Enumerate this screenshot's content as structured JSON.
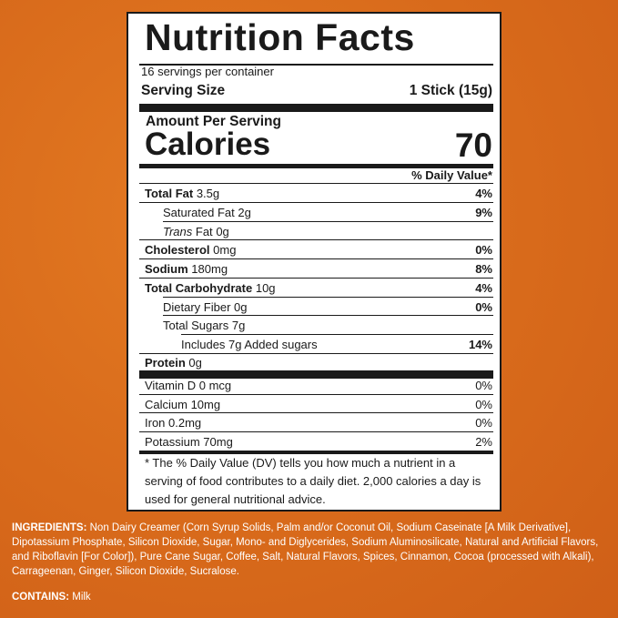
{
  "label": {
    "title": "Nutrition Facts",
    "servings_per_container": "16 servings per container",
    "serving_size_label": "Serving Size",
    "serving_size_value": "1 Stick (15g)",
    "amount_per_serving": "Amount Per Serving",
    "calories_label": "Calories",
    "calories_value": "70",
    "dv_header": "% Daily Value*",
    "rows": [
      {
        "name": "Total Fat",
        "amount": "3.5g",
        "dv": "4%"
      },
      {
        "name": "Saturated Fat",
        "amount": "2g",
        "dv": "9%"
      },
      {
        "name": "Trans",
        "name_suffix": "Fat",
        "amount": "0g",
        "dv": ""
      },
      {
        "name": "Cholesterol",
        "amount": "0mg",
        "dv": "0%"
      },
      {
        "name": "Sodium",
        "amount": "180mg",
        "dv": "8%"
      },
      {
        "name": "Total Carbohydrate",
        "amount": "10g",
        "dv": "4%"
      },
      {
        "name": "Dietary Fiber",
        "amount": "0g",
        "dv": "0%"
      },
      {
        "name": "Total Sugars",
        "amount": "7g",
        "dv": ""
      },
      {
        "name": "Includes 7g Added sugars",
        "amount": "",
        "dv": "14%"
      },
      {
        "name": "Protein",
        "amount": "0g",
        "dv": ""
      }
    ],
    "vitamins": [
      {
        "text": "Vitamin D  0 mcg",
        "dv": "0%"
      },
      {
        "text": "Calcium 10mg",
        "dv": "0%"
      },
      {
        "text": "Iron 0.2mg",
        "dv": "0%"
      },
      {
        "text": "Potassium 70mg",
        "dv": "2%"
      }
    ],
    "footnote": "* The % Daily Value (DV) tells you how much a nutrient in a serving of food contributes to a daily diet. 2,000 calories a day is used for general nutritional advice."
  },
  "ingredients": {
    "heading": "INGREDIENTS:",
    "text": "Non Dairy Creamer (Corn Syrup Solids, Palm and/or Coconut Oil, Sodium Caseinate [A Milk Derivative], Dipotassium Phosphate, Silicon Dioxide, Sugar, Mono- and Diglycerides, Sodium Aluminosilicate, Natural and Artificial Flavors, and Riboflavin [For Color]), Pure Cane Sugar, Coffee, Salt, Natural Flavors, Spices, Cinnamon, Cocoa (processed with Alkali), Carrageenan, Ginger, Silicon Dioxide, Sucralose."
  },
  "contains": {
    "heading": "CONTAINS:",
    "text": "Milk"
  },
  "colors": {
    "background": "#d86a1b",
    "panel": "#ffffff",
    "ink": "#1a1a1a"
  }
}
